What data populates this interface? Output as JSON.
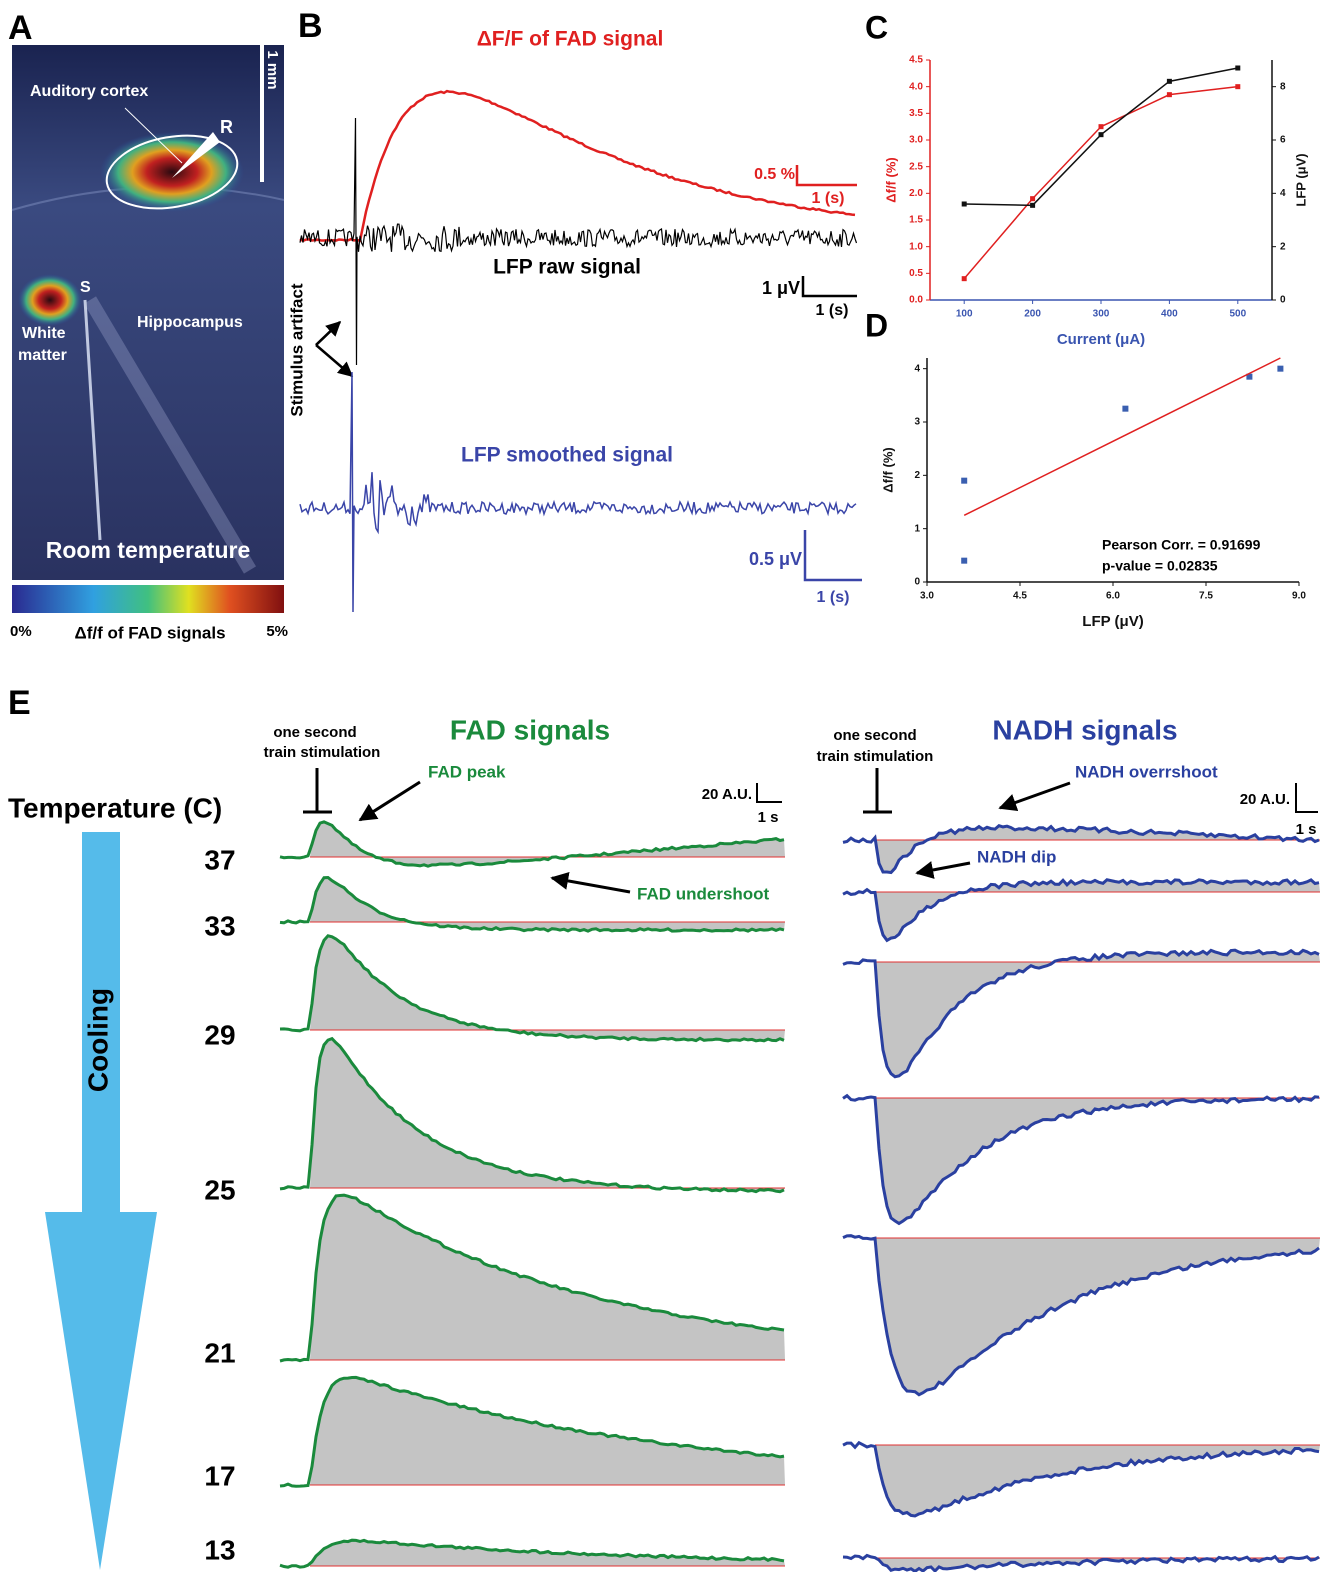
{
  "panel_a": {
    "label": "A",
    "scale_bar": "1 mm",
    "region": "Auditory cortex",
    "recording_site": "R",
    "stimulation_site": "S",
    "white_matter": [
      "White",
      "matter"
    ],
    "hippocampus": "Hippocampus",
    "condition": "Room temperature",
    "colorbar": {
      "min": "0%",
      "title": "Δf/f of FAD signals",
      "max": "5%"
    }
  },
  "panel_b": {
    "label": "B",
    "fad_title": "ΔF/F of FAD signal",
    "fad_scale": "0.5 %",
    "fad_time": "1 (s)",
    "raw_title": "LFP raw signal",
    "raw_scale": "1 μV",
    "raw_time": "1 (s)",
    "artifact": "Stimulus artifact",
    "smooth_title": "LFP smoothed signal",
    "smooth_scale": "0.5 μV",
    "smooth_time": "1 (s)"
  },
  "chart_data": [
    {
      "label": "C",
      "type": "line",
      "xlabel": "Current (μA)",
      "ylabel": "Δf/f (%)",
      "y2label": "LFP (μV)",
      "x": [
        100,
        200,
        300,
        400,
        500
      ],
      "xlim": [
        50,
        550
      ],
      "xticks": [
        100,
        200,
        300,
        400,
        500
      ],
      "ylim": [
        0,
        4.5
      ],
      "yticks": [
        {
          "value": 0,
          "label": "0.0"
        },
        0.5,
        {
          "value": 1,
          "label": "1.0"
        },
        1.5,
        {
          "value": 2,
          "label": "2.0"
        },
        2.5,
        {
          "value": 3,
          "label": "3.0"
        },
        3.5,
        {
          "value": 4,
          "label": "4.0"
        },
        4.5
      ],
      "y2lim": [
        0,
        9
      ],
      "y2ticks": [
        0,
        2,
        4,
        6,
        8
      ],
      "series": [
        {
          "color": "#e02020",
          "values": [
            0.4,
            1.9,
            3.25,
            3.85,
            4.0
          ]
        },
        {
          "color": "#111111",
          "axis": "y2",
          "values": [
            3.6,
            3.55,
            6.2,
            8.2,
            8.7
          ]
        }
      ]
    },
    {
      "label": "D",
      "type": "scatter",
      "xlabel": "LFP (μV)",
      "ylabel": "Δf/f (%)",
      "x": [
        3.6,
        3.6,
        6.2,
        8.2,
        8.7
      ],
      "values": [
        1.9,
        0.4,
        3.25,
        3.85,
        4.0
      ],
      "color": "#3a5fb0",
      "xlim": [
        3,
        9
      ],
      "xticks": [
        {
          "value": 3,
          "label": "3.0"
        },
        4.5,
        {
          "value": 6,
          "label": "6.0"
        },
        7.5,
        {
          "value": 9,
          "label": "9.0"
        }
      ],
      "ylim": [
        0,
        4.2
      ],
      "yticks": [
        0,
        1,
        2,
        3,
        4
      ],
      "fit": {
        "x": [
          3.6,
          8.7
        ],
        "values": [
          1.25,
          4.2
        ],
        "color": "#e02020"
      },
      "annotations": [
        "Pearson Corr. = 0.91699",
        "p-value = 0.02835"
      ]
    }
  ],
  "panel_e": {
    "label": "E",
    "temperature_title": "Temperature (C)",
    "arrow_label": "Cooling",
    "temperatures": [
      "37",
      "33",
      "29",
      "25",
      "21",
      "17",
      "13"
    ],
    "fad": {
      "title": "FAD signals",
      "stim": [
        "one second",
        "train stimulation"
      ],
      "peak": "FAD peak",
      "undershoot": "FAD undershoot",
      "scale": "20 A.U.",
      "time": "1 s"
    },
    "nadh": {
      "title": "NADH signals",
      "stim": [
        "one second",
        "train stimulation"
      ],
      "overshoot": "NADH overrshoot",
      "dip": "NADH dip",
      "scale": "20 A.U.",
      "time": "1 s"
    }
  }
}
